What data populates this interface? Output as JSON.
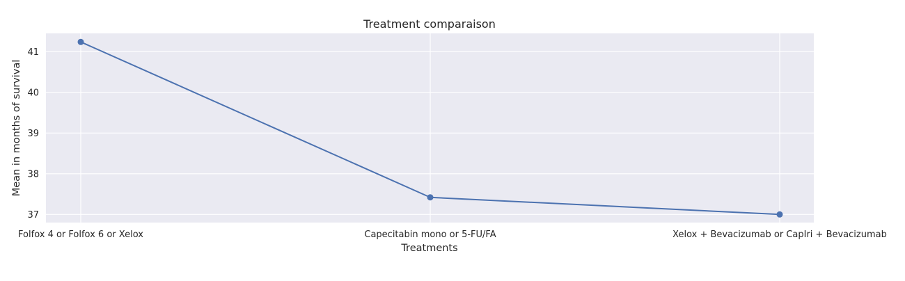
{
  "chart_data": {
    "type": "line",
    "title": "Treatment comparaison",
    "xlabel": "Treatments",
    "ylabel": "Mean in months of survival",
    "categories": [
      "Folfox 4 or Folfox 6 or Xelox",
      "Capecitabin mono or 5-FU/FA",
      "Xelox + Bevacizumab or CapIri + Bevacizumab"
    ],
    "series": [
      {
        "values": [
          41.24,
          37.42,
          37.0
        ]
      }
    ],
    "yticks": [
      "37",
      "38",
      "39",
      "40",
      "41"
    ],
    "ylim": [
      36.8,
      41.45
    ],
    "grid": true,
    "legend": "none",
    "colors": {
      "background": "#eaeaf2",
      "grid": "#ffffff",
      "line": "#4c72b0"
    }
  }
}
